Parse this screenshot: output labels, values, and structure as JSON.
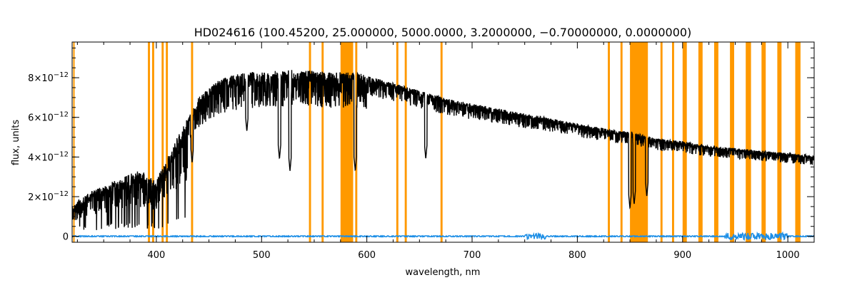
{
  "chart_data": {
    "type": "line",
    "title": "HD024616   (100.45200, 25.000000, 5000.0000, 3.2000000, −0.70000000, 0.0000000)",
    "xlabel": "wavelength, nm",
    "ylabel": "flux, units",
    "xlim": [
      320,
      1025
    ],
    "ylim": [
      -3e-13,
      9.8e-12
    ],
    "x_ticks": [
      400,
      500,
      600,
      700,
      800,
      900,
      1000
    ],
    "x_tick_labels": [
      "400",
      "500",
      "600",
      "700",
      "800",
      "900",
      "1000"
    ],
    "y_ticks": [
      0,
      2e-12,
      4e-12,
      6e-12,
      8e-12
    ],
    "y_tick_labels": [
      {
        "base": "0",
        "exp": ""
      },
      {
        "base": "2×10",
        "exp": "−12"
      },
      {
        "base": "4×10",
        "exp": "−12"
      },
      {
        "base": "6×10",
        "exp": "−12"
      },
      {
        "base": "8×10",
        "exp": "−12"
      }
    ],
    "grid": false,
    "colors": {
      "flux": "#000000",
      "error": "#1e8fe6",
      "mask": "#ff9900"
    },
    "series": [
      {
        "role": "flux",
        "x": [
          320,
          330,
          340,
          350,
          360,
          370,
          380,
          390,
          400,
          410,
          420,
          430,
          440,
          450,
          460,
          470,
          480,
          490,
          500,
          510,
          520,
          530,
          540,
          550,
          560,
          570,
          578,
          585,
          600,
          620,
          640,
          660,
          680,
          700,
          720,
          740,
          760,
          780,
          800,
          820,
          840,
          850,
          870,
          880,
          900,
          920,
          940,
          960,
          980,
          1000,
          1020,
          1025
        ],
        "y": [
          1.5e-12,
          2e-12,
          2.3e-12,
          2.6e-12,
          2.8e-12,
          3e-12,
          3.3e-12,
          3.2e-12,
          2.9e-12,
          4e-12,
          5e-12,
          6e-12,
          7e-12,
          7.5e-12,
          7.9e-12,
          8.1e-12,
          8.2e-12,
          8.3e-12,
          8.3e-12,
          8.35e-12,
          8.35e-12,
          8.4e-12,
          8.4e-12,
          8.35e-12,
          8.3e-12,
          8.25e-12,
          8.3e-12,
          8.35e-12,
          8.1e-12,
          7.8e-12,
          7.5e-12,
          7.2e-12,
          6.9e-12,
          6.7e-12,
          6.5e-12,
          6.3e-12,
          6.1e-12,
          5.9e-12,
          5.7e-12,
          5.5e-12,
          5.3e-12,
          5.3e-12,
          5e-12,
          4.9e-12,
          4.8e-12,
          4.6e-12,
          4.5e-12,
          4.4e-12,
          4.3e-12,
          4.2e-12,
          4.1e-12,
          4.05e-12
        ]
      },
      {
        "role": "error",
        "x": [
          320,
          1025
        ],
        "y": [
          0,
          0
        ]
      }
    ],
    "absorption_lines": [
      {
        "x": 393,
        "depth": 2.6e-12
      },
      {
        "x": 397,
        "depth": 2.5e-12
      },
      {
        "x": 410,
        "depth": 3e-12
      },
      {
        "x": 434,
        "depth": 3.7e-12
      },
      {
        "x": 486,
        "depth": 5.3e-12
      },
      {
        "x": 517,
        "depth": 3.9e-12
      },
      {
        "x": 527,
        "depth": 3.3e-12
      },
      {
        "x": 589,
        "depth": 3.3e-12
      },
      {
        "x": 656,
        "depth": 3.9e-12
      },
      {
        "x": 850,
        "depth": 1.4e-12
      },
      {
        "x": 854,
        "depth": 1.6e-12
      },
      {
        "x": 866,
        "depth": 2e-12
      }
    ],
    "masked_regions": [
      [
        321,
        322
      ],
      [
        392,
        394
      ],
      [
        396,
        398
      ],
      [
        405,
        407
      ],
      [
        409,
        411
      ],
      [
        433,
        435
      ],
      [
        545,
        547
      ],
      [
        557,
        559
      ],
      [
        575,
        587
      ],
      [
        589,
        591
      ],
      [
        628,
        630
      ],
      [
        636,
        638
      ],
      [
        670,
        672
      ],
      [
        829,
        831
      ],
      [
        841,
        843
      ],
      [
        850,
        867
      ],
      [
        879,
        881
      ],
      [
        890,
        892
      ],
      [
        900,
        904
      ],
      [
        915,
        919
      ],
      [
        930,
        934
      ],
      [
        945,
        949
      ],
      [
        960,
        965
      ],
      [
        975,
        979
      ],
      [
        990,
        994
      ],
      [
        1007,
        1012
      ]
    ]
  }
}
